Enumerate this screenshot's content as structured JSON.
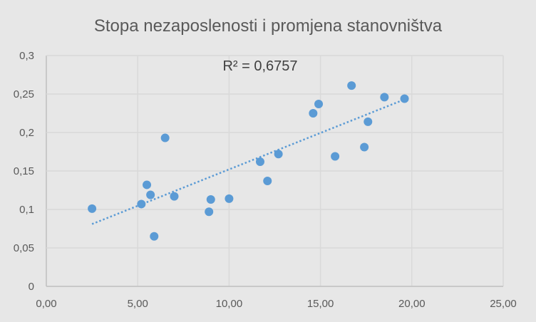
{
  "chart_data": {
    "type": "scatter",
    "title": "Stopa nezaposlenosti i promjena stanovništva",
    "xlabel": "",
    "ylabel": "",
    "xlim": [
      0,
      25
    ],
    "ylim": [
      0,
      0.3
    ],
    "x_ticks": [
      "0,00",
      "5,00",
      "10,00",
      "15,00",
      "20,00",
      "25,00"
    ],
    "y_ticks": [
      "0",
      "0,05",
      "0,1",
      "0,15",
      "0,2",
      "0,25",
      "0,3"
    ],
    "grid": true,
    "legend": "none",
    "colors": {
      "points": "#5b9bd5",
      "trendline": "#5b9bd5",
      "background": "#e7e7e7",
      "grid": "#d9d9d9"
    },
    "points": [
      {
        "x": 2.5,
        "y": 0.101
      },
      {
        "x": 5.2,
        "y": 0.107
      },
      {
        "x": 5.5,
        "y": 0.132
      },
      {
        "x": 5.7,
        "y": 0.119
      },
      {
        "x": 5.9,
        "y": 0.065
      },
      {
        "x": 6.5,
        "y": 0.193
      },
      {
        "x": 7.0,
        "y": 0.117
      },
      {
        "x": 8.9,
        "y": 0.097
      },
      {
        "x": 9.0,
        "y": 0.113
      },
      {
        "x": 10.0,
        "y": 0.114
      },
      {
        "x": 11.7,
        "y": 0.162
      },
      {
        "x": 12.1,
        "y": 0.137
      },
      {
        "x": 12.7,
        "y": 0.172
      },
      {
        "x": 14.6,
        "y": 0.225
      },
      {
        "x": 14.9,
        "y": 0.237
      },
      {
        "x": 15.8,
        "y": 0.169
      },
      {
        "x": 16.7,
        "y": 0.261
      },
      {
        "x": 17.4,
        "y": 0.181
      },
      {
        "x": 17.6,
        "y": 0.214
      },
      {
        "x": 18.5,
        "y": 0.246
      },
      {
        "x": 19.6,
        "y": 0.244
      }
    ],
    "trendline": {
      "type": "linear",
      "x_range": [
        2.5,
        19.6
      ],
      "y_range": [
        0.081,
        0.243
      ],
      "label": "R² = 0,6757"
    }
  }
}
